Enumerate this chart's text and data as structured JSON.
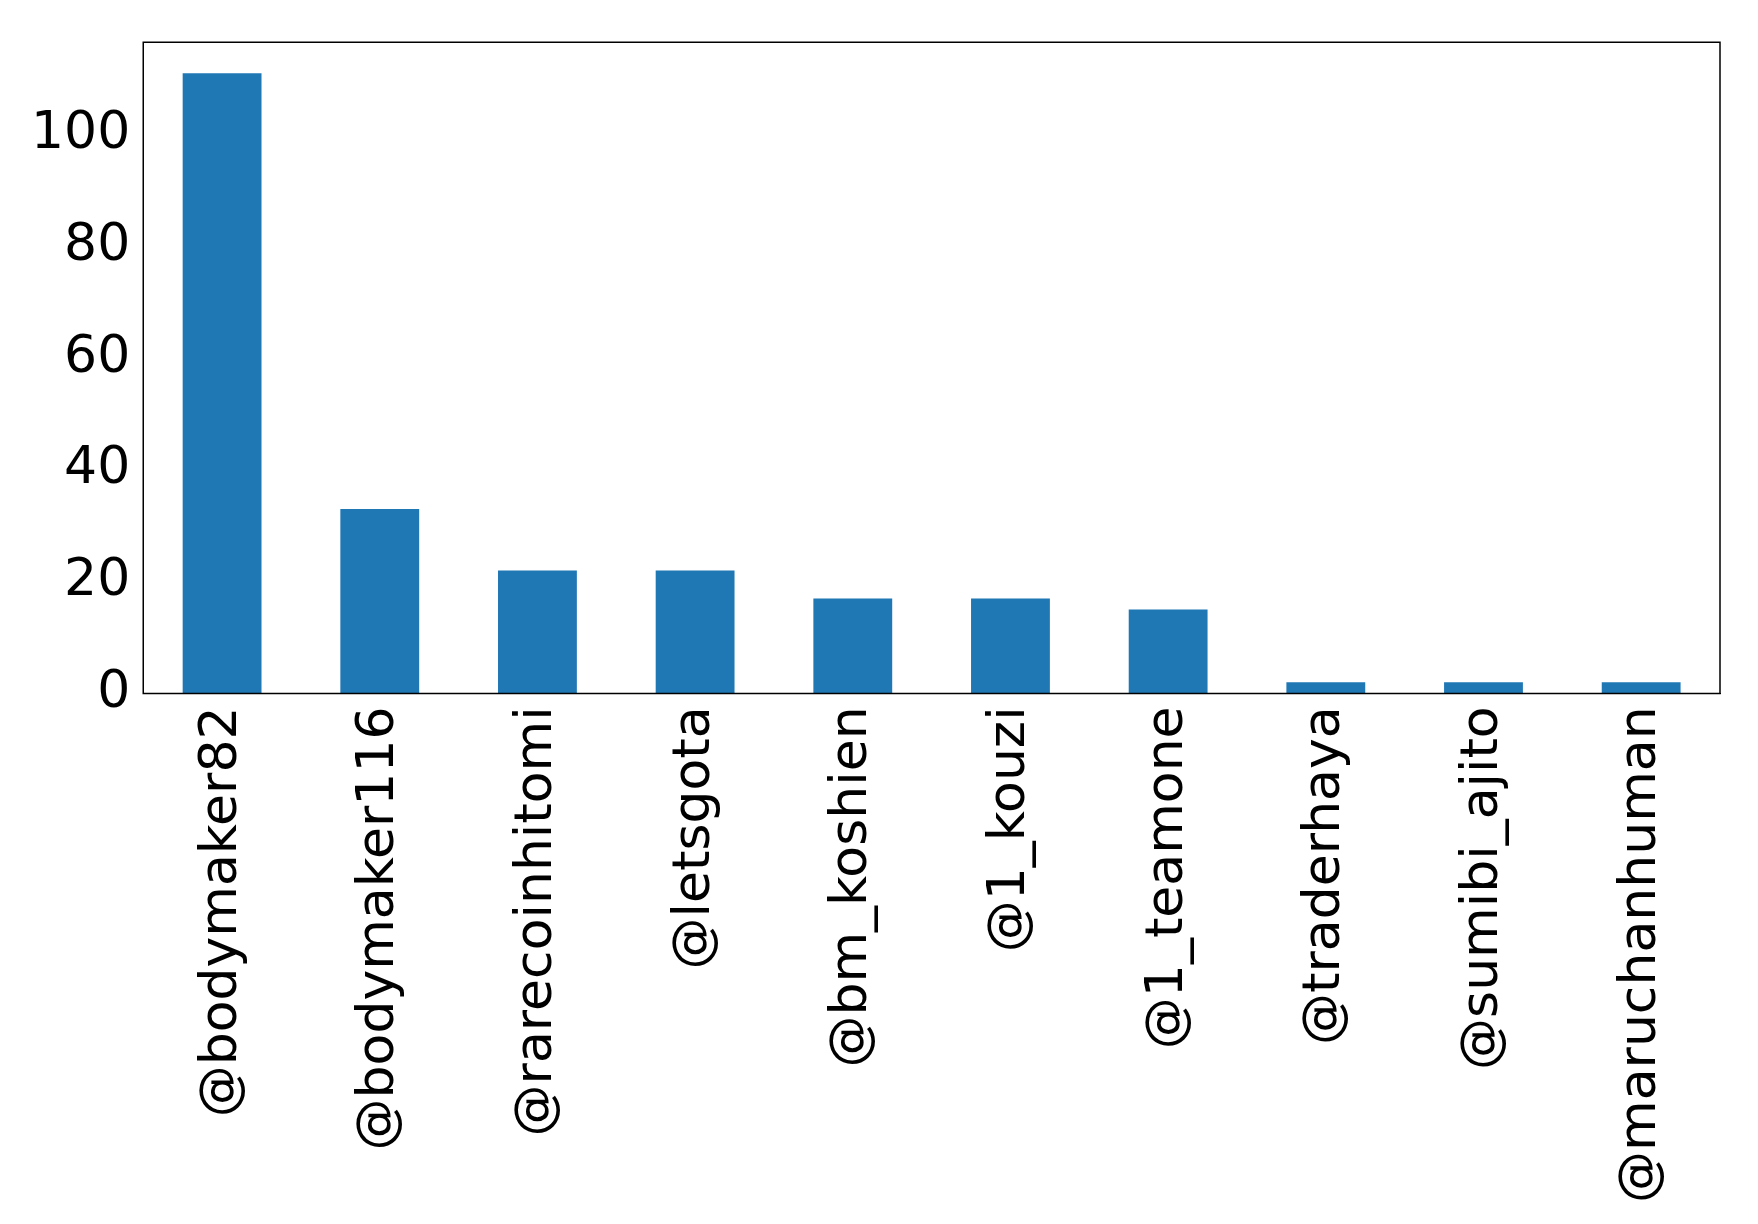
{
  "chart_data": {
    "type": "bar",
    "categories": [
      "@bodymaker82",
      "@bodymaker116",
      "@rarecoinhitomi",
      "@letsgota",
      "@bm_koshien",
      "@1_kouzi",
      "@1_teamone",
      "@traderhaya",
      "@sumibi_ajito",
      "@maruchanhuman"
    ],
    "values": [
      111,
      33,
      22,
      22,
      17,
      17,
      15,
      2,
      2,
      2
    ],
    "color": "#1f77b4",
    "ylim": [
      0,
      116.55
    ],
    "yticks": [
      0,
      20,
      40,
      60,
      80,
      100
    ],
    "grid": false,
    "legend": false
  }
}
